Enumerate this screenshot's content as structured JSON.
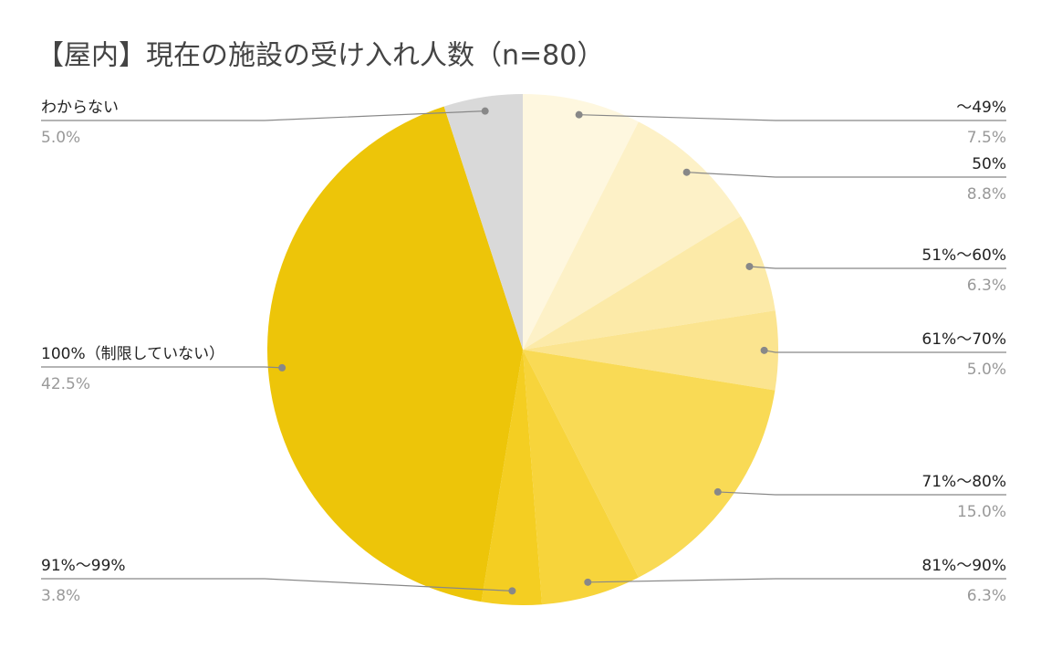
{
  "chart_data": {
    "type": "pie",
    "title": "【屋内】現在の施設の受け入れ人数（n=80）",
    "categories": [
      "〜49%",
      "50%",
      "51%〜60%",
      "61%〜70%",
      "71%〜80%",
      "81%〜90%",
      "91%〜99%",
      "100%（制限していない）",
      "わからない"
    ],
    "values": [
      7.5,
      8.8,
      6.3,
      5.0,
      15.0,
      6.3,
      3.8,
      42.5,
      5.0
    ],
    "value_labels": [
      "7.5%",
      "8.8%",
      "6.3%",
      "5.0%",
      "15.0%",
      "6.3%",
      "3.8%",
      "42.5%",
      "5.0%"
    ],
    "colors": [
      "#fef7df",
      "#fdf1c7",
      "#fceaa8",
      "#fbe48f",
      "#f9da55",
      "#f7d43b",
      "#f4ce22",
      "#edc509",
      "#d9d9d9"
    ]
  }
}
